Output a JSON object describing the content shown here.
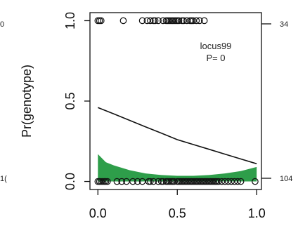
{
  "chart_data": {
    "type": "scatter",
    "title": "",
    "xlabel": "",
    "ylabel": "Pr(genotype)",
    "xlim": [
      -0.05,
      1.03
    ],
    "ylim": [
      -0.05,
      1.05
    ],
    "x_ticks": [
      {
        "value": 0,
        "label": "0.0"
      },
      {
        "value": 0.5,
        "label": "0.5"
      },
      {
        "value": 1,
        "label": "1.0"
      }
    ],
    "y_ticks": [
      {
        "value": 0,
        "label": "0.0"
      },
      {
        "value": 0.5,
        "label": "0.5"
      },
      {
        "value": 1,
        "label": "1.0"
      }
    ],
    "annotation": {
      "line1": "locus99",
      "line2": "P= 0"
    },
    "right_counts": {
      "top": "34",
      "bottom": "104"
    },
    "left_edge_fragments": {
      "top": "0",
      "bottom": "1("
    },
    "points_y1": [
      0.0,
      0.01,
      0.02,
      0.16,
      0.28,
      0.31,
      0.33,
      0.35,
      0.36,
      0.38,
      0.41,
      0.43,
      0.44,
      0.45,
      0.46,
      0.47,
      0.48,
      0.49,
      0.5,
      0.51,
      0.53,
      0.54,
      0.56,
      0.58,
      0.59,
      0.6,
      0.62,
      0.64,
      0.67
    ],
    "points_y0": [
      0.0,
      0.01,
      0.02,
      0.03,
      0.04,
      0.05,
      0.06,
      0.12,
      0.15,
      0.18,
      0.22,
      0.25,
      0.28,
      0.32,
      0.33,
      0.35,
      0.38,
      0.4,
      0.41,
      0.43,
      0.44,
      0.45,
      0.46,
      0.47,
      0.48,
      0.5,
      0.51,
      0.52,
      0.53,
      0.54,
      0.55,
      0.56,
      0.57,
      0.58,
      0.59,
      0.6,
      0.61,
      0.62,
      0.63,
      0.64,
      0.65,
      0.66,
      0.67,
      0.68,
      0.69,
      0.7,
      0.71,
      0.72,
      0.73,
      0.74,
      0.75,
      0.76,
      0.78,
      0.8,
      0.82,
      0.84,
      0.86,
      0.88,
      0.9,
      0.99
    ],
    "fit_curve": {
      "x": [
        0.0,
        0.1,
        0.2,
        0.3,
        0.4,
        0.5,
        0.6,
        0.7,
        0.8,
        0.9,
        1.0
      ],
      "y": [
        0.46,
        0.42,
        0.38,
        0.34,
        0.3,
        0.26,
        0.23,
        0.2,
        0.17,
        0.14,
        0.11
      ]
    },
    "band": {
      "x": [
        0.0,
        0.05,
        0.1,
        0.2,
        0.3,
        0.4,
        0.5,
        0.6,
        0.7,
        0.8,
        0.9,
        1.0
      ],
      "upper": [
        0.17,
        0.12,
        0.1,
        0.07,
        0.05,
        0.04,
        0.035,
        0.035,
        0.04,
        0.05,
        0.065,
        0.09
      ],
      "lower": [
        0.0,
        0.0,
        0.0,
        0.0,
        0.0,
        0.0,
        0.0,
        0.0,
        0.0,
        0.0,
        0.0,
        0.0
      ]
    },
    "colors": {
      "band": "#2e9e4a",
      "line": "#111111",
      "points": "#111111"
    }
  }
}
